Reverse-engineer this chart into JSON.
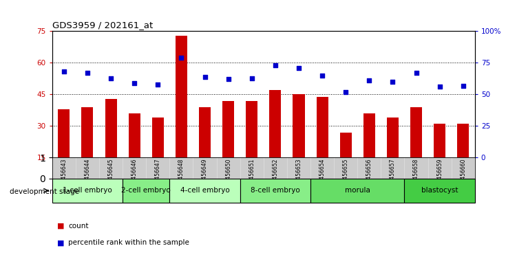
{
  "title": "GDS3959 / 202161_at",
  "samples": [
    "GSM456643",
    "GSM456644",
    "GSM456645",
    "GSM456646",
    "GSM456647",
    "GSM456648",
    "GSM456649",
    "GSM456650",
    "GSM456651",
    "GSM456652",
    "GSM456653",
    "GSM456654",
    "GSM456655",
    "GSM456656",
    "GSM456657",
    "GSM456658",
    "GSM456659",
    "GSM456660"
  ],
  "bar_values": [
    38,
    39,
    43,
    36,
    34,
    73,
    39,
    42,
    42,
    47,
    45,
    44,
    27,
    36,
    34,
    39,
    31,
    31
  ],
  "dot_values": [
    68,
    67,
    63,
    59,
    58,
    79,
    64,
    62,
    63,
    73,
    71,
    65,
    52,
    61,
    60,
    67,
    56,
    57
  ],
  "bar_color": "#cc0000",
  "dot_color": "#0000cc",
  "ylim_left": [
    15,
    75
  ],
  "ylim_right": [
    0,
    100
  ],
  "yticks_left": [
    15,
    30,
    45,
    60,
    75
  ],
  "yticks_right": [
    0,
    25,
    50,
    75,
    100
  ],
  "ytick_labels_right": [
    "0",
    "25",
    "50",
    "75",
    "100%"
  ],
  "stages": [
    {
      "label": "1-cell embryo",
      "count": 3,
      "color": "#bbffbb"
    },
    {
      "label": "2-cell embryo",
      "count": 2,
      "color": "#88ee88"
    },
    {
      "label": "4-cell embryo",
      "count": 3,
      "color": "#bbffbb"
    },
    {
      "label": "8-cell embryo",
      "count": 3,
      "color": "#88ee88"
    },
    {
      "label": "morula",
      "count": 4,
      "color": "#66dd66"
    },
    {
      "label": "blastocyst",
      "count": 3,
      "color": "#44cc44"
    }
  ],
  "tick_bg_color": "#cccccc",
  "background_color": "#ffffff",
  "grid_color": "#000000",
  "tick_label_color_left": "#cc0000",
  "tick_label_color_right": "#0000cc"
}
